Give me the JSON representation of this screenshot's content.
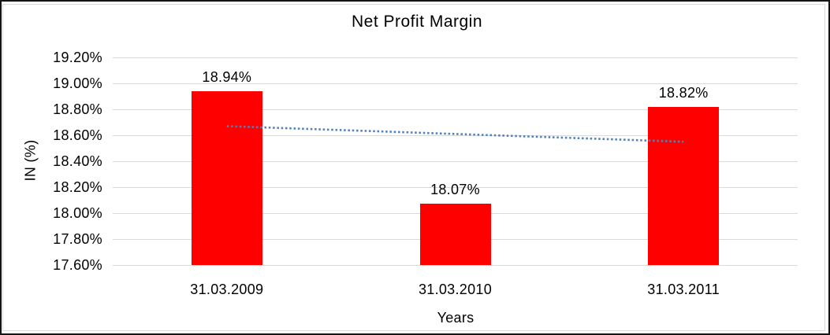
{
  "chart_data": {
    "type": "bar",
    "title": "Net Profit Margin",
    "xlabel": "Years",
    "ylabel": "IN (%)",
    "categories": [
      "31.03.2009",
      "31.03.2010",
      "31.03.2011"
    ],
    "values": [
      18.94,
      18.07,
      18.82
    ],
    "data_labels": [
      "18.94%",
      "18.07%",
      "18.82%"
    ],
    "ylim": [
      17.6,
      19.2
    ],
    "yticks": [
      {
        "value": 19.2,
        "label": "19.20%"
      },
      {
        "value": 19.0,
        "label": "19.00%"
      },
      {
        "value": 18.8,
        "label": "18.80%"
      },
      {
        "value": 18.6,
        "label": "18.60%"
      },
      {
        "value": 18.4,
        "label": "18.40%"
      },
      {
        "value": 18.2,
        "label": "18.20%"
      },
      {
        "value": 18.0,
        "label": "18.00%"
      },
      {
        "value": 17.8,
        "label": "17.80%"
      },
      {
        "value": 17.6,
        "label": "17.60%"
      }
    ],
    "grid": "horizontal",
    "legend": "none",
    "bar_color": "#FF0000",
    "gridline_color": "#D9D9D9",
    "trendline": {
      "kind": "linear",
      "style": "dotted",
      "color": "#4F81BD",
      "start_value": 18.67,
      "end_value": 18.55
    }
  }
}
